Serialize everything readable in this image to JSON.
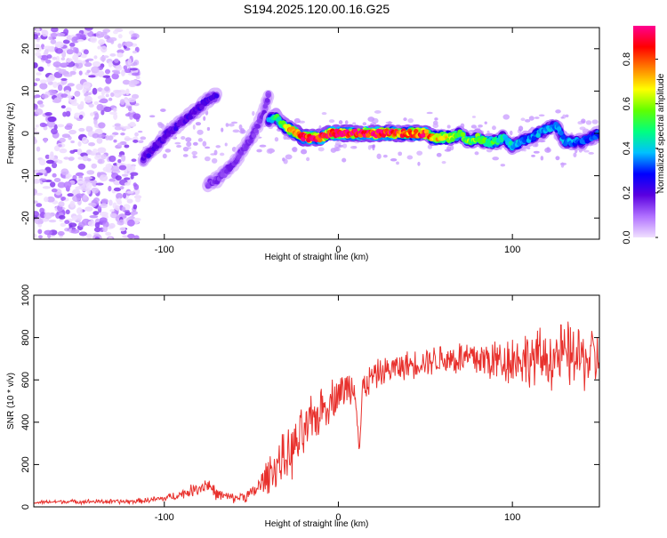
{
  "figure": {
    "title": "S194.2025.120.00.16.G25"
  },
  "chart_data": [
    {
      "type": "heatmap",
      "title": "S194.2025.120.00.16.G25",
      "xlabel": "Height of straight line (km)",
      "ylabel": "Frequency (Hz)",
      "xlim": [
        -175,
        150
      ],
      "ylim": [
        -25,
        25
      ],
      "x_ticks": [
        -100,
        0,
        100
      ],
      "y_ticks": [
        -20,
        -10,
        0,
        10,
        20
      ],
      "colorbar": {
        "label": "Normalized spectral amplitude",
        "range": [
          0,
          0.95
        ],
        "ticks": [
          0.0,
          0.2,
          0.4,
          0.6,
          0.8
        ],
        "colormap": [
          "#f0e0ff",
          "#b070ff",
          "#5a00e0",
          "#0000ff",
          "#00c0ff",
          "#00ff80",
          "#60ff00",
          "#ffff00",
          "#ff8000",
          "#ff0000",
          "#ff0090"
        ]
      },
      "noise_region": {
        "x": [
          -175,
          -115
        ],
        "y": [
          -25,
          25
        ],
        "amplitude": 0.1
      },
      "ridges": [
        {
          "name": "",
          "x": [
            -112,
            -105,
            -98,
            -92,
            -86,
            -80,
            -75,
            -70
          ],
          "y": [
            -6,
            -3,
            0,
            2,
            4,
            6,
            8,
            9
          ],
          "amplitude": 0.2
        },
        {
          "name": "",
          "x": [
            -75,
            -70,
            -65,
            -60,
            -55,
            -50,
            -46,
            -43,
            -40
          ],
          "y": [
            -12,
            -11,
            -9,
            -7,
            -4,
            -1,
            2,
            5,
            9
          ],
          "amplitude": 0.15
        },
        {
          "name": "",
          "x": [
            -40,
            -36,
            -32,
            -28,
            -24,
            -20,
            -15,
            -10,
            -5,
            0,
            5,
            10,
            15,
            20,
            25,
            30,
            35,
            40,
            45,
            50,
            55,
            60,
            65,
            70,
            75,
            80,
            85,
            90,
            95,
            100,
            105,
            110,
            115,
            120,
            125,
            130,
            135,
            140,
            145,
            150
          ],
          "y": [
            3,
            4,
            2,
            1,
            0,
            -1,
            -1,
            -1,
            0,
            0,
            0,
            0,
            0,
            0,
            0,
            0,
            0,
            0,
            0,
            0,
            -1,
            -1,
            -1,
            0,
            -2,
            -1,
            -2,
            -2,
            -1,
            -3,
            -2,
            -1,
            0,
            1,
            2,
            -2,
            -2,
            -2,
            -1,
            0
          ],
          "amplitude": [
            0.35,
            0.45,
            0.55,
            0.7,
            0.8,
            0.9,
            0.9,
            0.85,
            0.85,
            0.9,
            0.9,
            0.9,
            0.9,
            0.9,
            0.9,
            0.85,
            0.8,
            0.75,
            0.8,
            0.85,
            0.7,
            0.7,
            0.6,
            0.5,
            0.55,
            0.55,
            0.5,
            0.5,
            0.45,
            0.4,
            0.35,
            0.35,
            0.35,
            0.4,
            0.35,
            0.35,
            0.35,
            0.3,
            0.3,
            0.3
          ]
        }
      ]
    },
    {
      "type": "line",
      "title": "",
      "xlabel": "Height of straight line (km)",
      "ylabel": "SNR (10 * v/v)",
      "xlim": [
        -175,
        150
      ],
      "ylim": [
        0,
        1000
      ],
      "x_ticks": [
        -100,
        0,
        100
      ],
      "y_ticks": [
        0,
        200,
        400,
        600,
        800,
        1000
      ],
      "grid": false,
      "series": [
        {
          "name": "",
          "color": "#e8302c",
          "x": [
            -175,
            -160,
            -140,
            -120,
            -110,
            -100,
            -90,
            -80,
            -75,
            -70,
            -60,
            -50,
            -45,
            -40,
            -35,
            -30,
            -25,
            -20,
            -15,
            -10,
            -5,
            0,
            5,
            10,
            12,
            14,
            20,
            30,
            40,
            50,
            60,
            70,
            80,
            90,
            100,
            110,
            120,
            130,
            140,
            150
          ],
          "y": [
            20,
            25,
            25,
            25,
            30,
            40,
            60,
            90,
            110,
            60,
            40,
            60,
            100,
            160,
            200,
            230,
            280,
            340,
            400,
            460,
            500,
            540,
            560,
            580,
            250,
            560,
            620,
            650,
            670,
            690,
            700,
            700,
            700,
            690,
            700,
            700,
            700,
            720,
            700,
            700
          ],
          "noise": [
            8,
            8,
            10,
            10,
            12,
            15,
            20,
            30,
            40,
            25,
            20,
            30,
            50,
            80,
            100,
            110,
            120,
            120,
            110,
            100,
            90,
            80,
            80,
            80,
            70,
            70,
            60,
            60,
            60,
            60,
            70,
            80,
            90,
            100,
            110,
            120,
            130,
            140,
            140,
            140
          ]
        }
      ]
    }
  ]
}
